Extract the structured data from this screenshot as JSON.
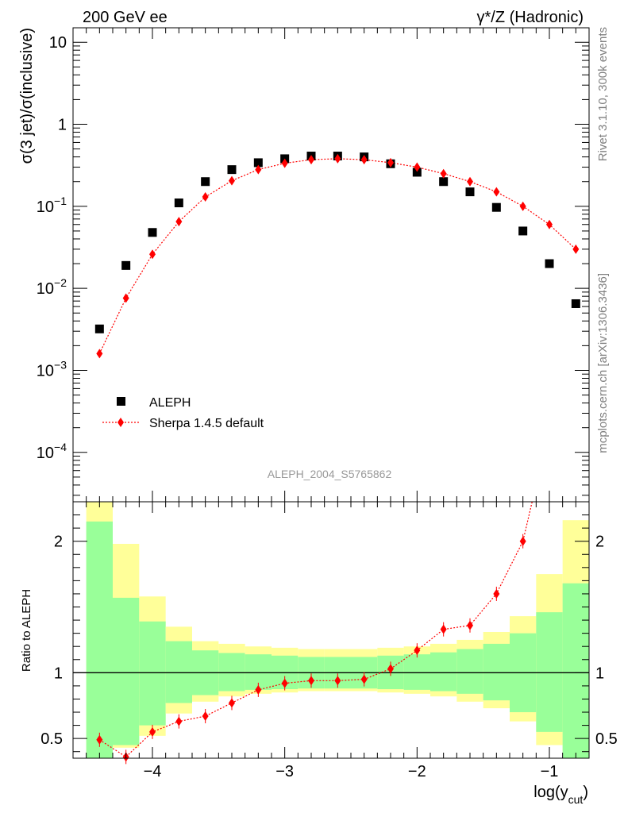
{
  "header": {
    "left": "200 GeV ee",
    "right": "γ*/Z (Hadronic)"
  },
  "side_labels": {
    "rivet": "Rivet 3.1.10,  300k events",
    "mcplots": "mcplots.cern.ch [arXiv:1306.3436]"
  },
  "watermark": "ALEPH_2004_S5765862",
  "colors": {
    "data": "#000000",
    "mc": "#ff0000",
    "band_inner": "#99ff99",
    "band_outer": "#ffff99"
  },
  "chart_data": [
    {
      "type": "scatter",
      "title": "",
      "xlabel": "log(y_cut)",
      "ylabel": "σ(3 jet)/σ(inclusive)",
      "yscale": "log",
      "xlim": [
        -4.6,
        -0.7
      ],
      "ylim": [
        2.5e-05,
        15
      ],
      "x_ticks": [
        "−4",
        "−3",
        "−2",
        "−1"
      ],
      "y_ticks": [
        {
          "value": 10,
          "label": "10"
        },
        {
          "value": 1,
          "label": "1"
        },
        {
          "value": 0.1,
          "base": "10",
          "exp": "−1"
        },
        {
          "value": 0.01,
          "base": "10",
          "exp": "−2"
        },
        {
          "value": 0.001,
          "base": "10",
          "exp": "−3"
        },
        {
          "value": 0.0001,
          "base": "10",
          "exp": "−4"
        }
      ],
      "legend": {
        "position": "lower-left",
        "entries": [
          "ALEPH",
          "Sherpa 1.4.5 default"
        ]
      },
      "x": [
        -4.4,
        -4.2,
        -4.0,
        -3.8,
        -3.6,
        -3.4,
        -3.2,
        -3.0,
        -2.8,
        -2.6,
        -2.4,
        -2.2,
        -2.0,
        -1.8,
        -1.6,
        -1.4,
        -1.2,
        -1.0,
        -0.8
      ],
      "series": [
        {
          "name": "ALEPH",
          "marker": "square",
          "values": [
            0.0032,
            0.019,
            0.048,
            0.11,
            0.2,
            0.28,
            0.34,
            0.38,
            0.41,
            0.41,
            0.4,
            0.33,
            0.26,
            0.2,
            0.15,
            0.097,
            0.05,
            0.02,
            0.0065
          ]
        },
        {
          "name": "Sherpa 1.4.5 default",
          "marker": "diamond",
          "line": "dotted",
          "values": [
            0.0016,
            0.0076,
            0.026,
            0.065,
            0.13,
            0.205,
            0.28,
            0.335,
            0.37,
            0.38,
            0.37,
            0.34,
            0.3,
            0.25,
            0.2,
            0.15,
            0.1,
            0.06,
            0.03
          ]
        }
      ]
    },
    {
      "type": "bar",
      "title": "",
      "xlabel": "log(y_cut)",
      "ylabel": "Ratio to ALEPH",
      "xlim": [
        -4.6,
        -0.7
      ],
      "ylim": [
        0.35,
        2.3
      ],
      "y_ticks": [
        "0.5",
        "1",
        "2"
      ],
      "bin_edges": [
        -4.5,
        -4.3,
        -4.1,
        -3.9,
        -3.7,
        -3.5,
        -3.3,
        -3.1,
        -2.9,
        -2.7,
        -2.5,
        -2.3,
        -2.1,
        -1.9,
        -1.7,
        -1.5,
        -1.3,
        -1.1,
        -0.9,
        -0.7
      ],
      "inner_band": {
        "lo": [
          0.2,
          0.45,
          0.6,
          0.77,
          0.83,
          0.86,
          0.87,
          0.875,
          0.88,
          0.88,
          0.88,
          0.875,
          0.87,
          0.86,
          0.84,
          0.79,
          0.7,
          0.55,
          0.3
        ],
        "hi": [
          2.15,
          1.57,
          1.39,
          1.24,
          1.17,
          1.15,
          1.14,
          1.13,
          1.12,
          1.12,
          1.12,
          1.13,
          1.14,
          1.155,
          1.18,
          1.22,
          1.3,
          1.46,
          1.68
        ]
      },
      "outer_band": {
        "lo": [
          0.2,
          0.43,
          0.52,
          0.69,
          0.78,
          0.82,
          0.84,
          0.85,
          0.86,
          0.86,
          0.86,
          0.85,
          0.84,
          0.82,
          0.78,
          0.73,
          0.63,
          0.45,
          0.25
        ],
        "hi": [
          2.5,
          1.98,
          1.58,
          1.35,
          1.24,
          1.22,
          1.2,
          1.19,
          1.18,
          1.18,
          1.18,
          1.19,
          1.2,
          1.22,
          1.25,
          1.31,
          1.43,
          1.75,
          2.16
        ]
      },
      "series": [
        {
          "name": "Sherpa 1.4.5 default",
          "marker": "diamond",
          "x": [
            -4.4,
            -4.2,
            -4.0,
            -3.8,
            -3.6,
            -3.4,
            -3.2,
            -3.0,
            -2.8,
            -2.6,
            -2.4,
            -2.2,
            -2.0,
            -1.8,
            -1.6,
            -1.4,
            -1.2
          ],
          "values": [
            0.49,
            0.36,
            0.55,
            0.63,
            0.67,
            0.77,
            0.87,
            0.92,
            0.94,
            0.94,
            0.95,
            1.03,
            1.17,
            1.33,
            1.36,
            1.6,
            2.0
          ]
        }
      ]
    }
  ]
}
